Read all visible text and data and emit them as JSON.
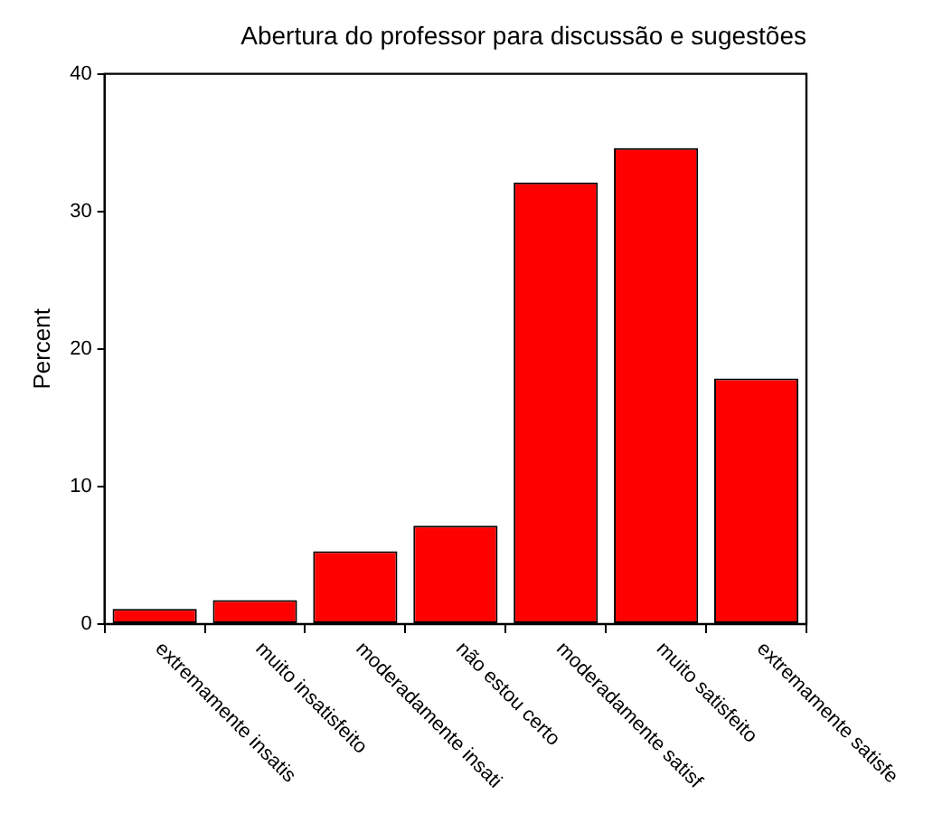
{
  "chart_data": {
    "type": "bar",
    "title": "Abertura do professor para discussão e sugestões",
    "ylabel": "Percent",
    "categories": [
      "extremamente insatis",
      "muito insatisfeito",
      "moderadamente insati",
      "não estou certo",
      "moderadamente satisf",
      "muito satisfeito",
      "extremamente satisfe"
    ],
    "values": [
      1.1,
      1.75,
      5.3,
      7.15,
      32.1,
      34.6,
      17.85
    ],
    "color": "#ff0000",
    "ylim": [
      0,
      40
    ],
    "yticks": [
      0,
      10,
      20,
      30,
      40
    ],
    "grid": false,
    "legend": false
  }
}
